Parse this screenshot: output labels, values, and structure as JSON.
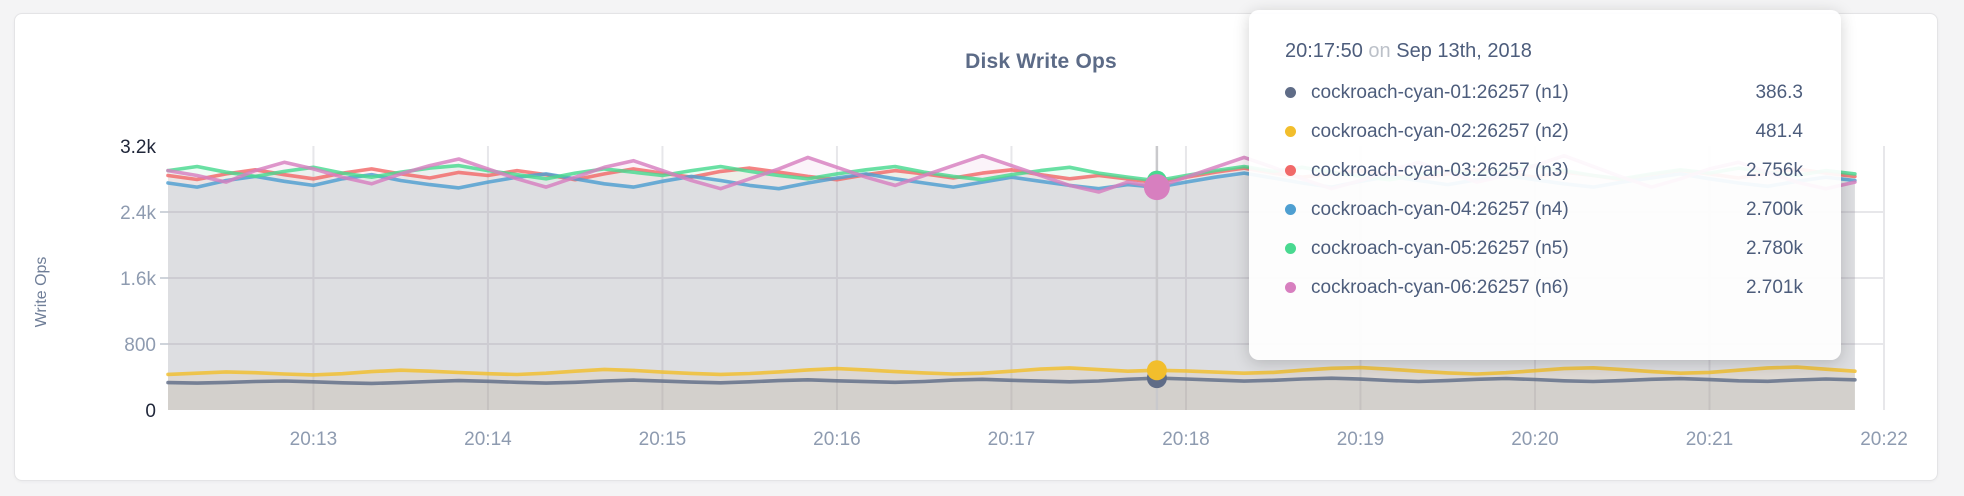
{
  "card": {
    "title": "Disk Write Ops"
  },
  "colors": {
    "page_background": "#f4f4f5",
    "card_background": "#ffffff",
    "gridline": "#e7e7ea",
    "hover_line": "#c9c9cc",
    "title_text": "#5c6b87",
    "axis_text": "#8e9bb0",
    "axis_text_emphasis": "#20273a",
    "tooltip_text": "#4d5d7c"
  },
  "tooltip": {
    "time": "20:17:50",
    "conjunction": "on",
    "date": "Sep 13th, 2018",
    "rows": [
      {
        "label": "cockroach-cyan-01:26257 (n1)",
        "value": "386.3",
        "color": "#5F6C87"
      },
      {
        "label": "cockroach-cyan-02:26257 (n2)",
        "value": "481.4",
        "color": "#F2BE2C"
      },
      {
        "label": "cockroach-cyan-03:26257 (n3)",
        "value": "2.756k",
        "color": "#F16969"
      },
      {
        "label": "cockroach-cyan-04:26257 (n4)",
        "value": "2.700k",
        "color": "#4E9FD1"
      },
      {
        "label": "cockroach-cyan-05:26257 (n5)",
        "value": "2.780k",
        "color": "#49D990"
      },
      {
        "label": "cockroach-cyan-06:26257 (n6)",
        "value": "2.701k",
        "color": "#D77FBF"
      }
    ]
  },
  "chart_data": {
    "type": "line",
    "title": "Disk Write Ops",
    "xlabel": "",
    "ylabel": "Write Ops",
    "ylim": [
      0,
      3200
    ],
    "grid": true,
    "legend_position": "tooltip",
    "x_start": "20:12:10",
    "x_interval_sec": 10,
    "x_ticks": [
      "20:13",
      "20:14",
      "20:15",
      "20:16",
      "20:17",
      "20:18",
      "20:19",
      "20:20",
      "20:21",
      "20:22"
    ],
    "y_ticks": [
      {
        "value": 0,
        "label": "0",
        "emphasis": true
      },
      {
        "value": 800,
        "label": "800",
        "emphasis": false
      },
      {
        "value": 1600,
        "label": "1.6k",
        "emphasis": false
      },
      {
        "value": 2400,
        "label": "2.4k",
        "emphasis": false
      },
      {
        "value": 3200,
        "label": "3.2k",
        "emphasis": true
      }
    ],
    "hover": {
      "index": 34,
      "time": "20:17:50",
      "date": "Sep 13th, 2018"
    },
    "series": [
      {
        "name": "cockroach-cyan-01:26257 (n1)",
        "color": "#5F6C87",
        "hover_value": 386.3,
        "values": [
          332,
          326,
          334,
          346,
          352,
          342,
          330,
          322,
          332,
          346,
          356,
          348,
          336,
          326,
          336,
          352,
          362,
          350,
          338,
          330,
          342,
          356,
          366,
          354,
          344,
          336,
          346,
          362,
          372,
          360,
          350,
          342,
          352,
          372,
          386.3,
          376,
          362,
          350,
          360,
          376,
          386,
          374,
          358,
          346,
          356,
          372,
          382,
          370,
          354,
          346,
          356,
          372,
          380,
          368,
          354,
          348,
          364,
          376,
          366
        ]
      },
      {
        "name": "cockroach-cyan-02:26257 (n2)",
        "color": "#F2BE2C",
        "hover_value": 481.4,
        "values": [
          432,
          446,
          462,
          452,
          436,
          426,
          440,
          466,
          482,
          470,
          454,
          440,
          430,
          446,
          470,
          492,
          480,
          460,
          444,
          432,
          442,
          462,
          486,
          502,
          486,
          466,
          450,
          436,
          446,
          470,
          496,
          510,
          490,
          470,
          481.4,
          474,
          460,
          446,
          456,
          482,
          506,
          514,
          494,
          470,
          450,
          436,
          452,
          476,
          502,
          512,
          490,
          466,
          446,
          456,
          482,
          510,
          520,
          494,
          470
        ]
      },
      {
        "name": "cockroach-cyan-03:26257 (n3)",
        "color": "#F16969",
        "hover_value": 2756,
        "values": [
          2842,
          2794,
          2862,
          2912,
          2852,
          2802,
          2872,
          2922,
          2862,
          2812,
          2880,
          2842,
          2902,
          2852,
          2792,
          2862,
          2922,
          2872,
          2822,
          2892,
          2932,
          2882,
          2832,
          2792,
          2852,
          2902,
          2862,
          2812,
          2872,
          2912,
          2852,
          2802,
          2842,
          2800,
          2756,
          2822,
          2882,
          2932,
          2872,
          2822,
          2862,
          2902,
          2852,
          2802,
          2862,
          2912,
          2872,
          2822,
          2882,
          2842,
          2792,
          2852,
          2902,
          2862,
          2812,
          2872,
          2922,
          2872,
          2832
        ]
      },
      {
        "name": "cockroach-cyan-04:26257 (n4)",
        "color": "#4E9FD1",
        "hover_value": 2700,
        "values": [
          2752,
          2702,
          2782,
          2832,
          2772,
          2722,
          2802,
          2852,
          2782,
          2732,
          2692,
          2762,
          2822,
          2862,
          2802,
          2742,
          2702,
          2772,
          2832,
          2782,
          2722,
          2682,
          2752,
          2812,
          2862,
          2802,
          2752,
          2702,
          2762,
          2822,
          2772,
          2722,
          2682,
          2732,
          2700,
          2762,
          2822,
          2872,
          2812,
          2752,
          2702,
          2772,
          2832,
          2782,
          2732,
          2792,
          2842,
          2792,
          2742,
          2702,
          2762,
          2812,
          2862,
          2802,
          2752,
          2712,
          2772,
          2822,
          2782
        ]
      },
      {
        "name": "cockroach-cyan-05:26257 (n5)",
        "color": "#49D990",
        "hover_value": 2780,
        "values": [
          2902,
          2952,
          2882,
          2832,
          2892,
          2942,
          2872,
          2822,
          2882,
          2932,
          2962,
          2902,
          2852,
          2802,
          2872,
          2922,
          2882,
          2842,
          2902,
          2952,
          2892,
          2842,
          2802,
          2862,
          2912,
          2952,
          2882,
          2832,
          2792,
          2852,
          2902,
          2942,
          2872,
          2822,
          2780,
          2842,
          2902,
          2952,
          2892,
          2942,
          2882,
          2832,
          2792,
          2852,
          2902,
          2862,
          2922,
          2962,
          2902,
          2842,
          2802,
          2862,
          2912,
          2872,
          2932,
          2882,
          2842,
          2902,
          2862
        ]
      },
      {
        "name": "cockroach-cyan-06:26257 (n6)",
        "color": "#D77FBF",
        "hover_value": 2701,
        "values": [
          2902,
          2842,
          2762,
          2902,
          3002,
          2922,
          2822,
          2742,
          2862,
          2962,
          3042,
          2922,
          2802,
          2702,
          2822,
          2942,
          3022,
          2902,
          2782,
          2682,
          2802,
          2922,
          3062,
          2942,
          2822,
          2722,
          2842,
          2962,
          3082,
          2962,
          2842,
          2722,
          2642,
          2762,
          2701,
          2822,
          2942,
          3062,
          2942,
          2802,
          2682,
          2782,
          2902,
          3002,
          2882,
          2762,
          2842,
          2962,
          3082,
          2952,
          2822,
          2702,
          2802,
          2922,
          3002,
          2882,
          2762,
          2682,
          2762
        ]
      }
    ]
  }
}
